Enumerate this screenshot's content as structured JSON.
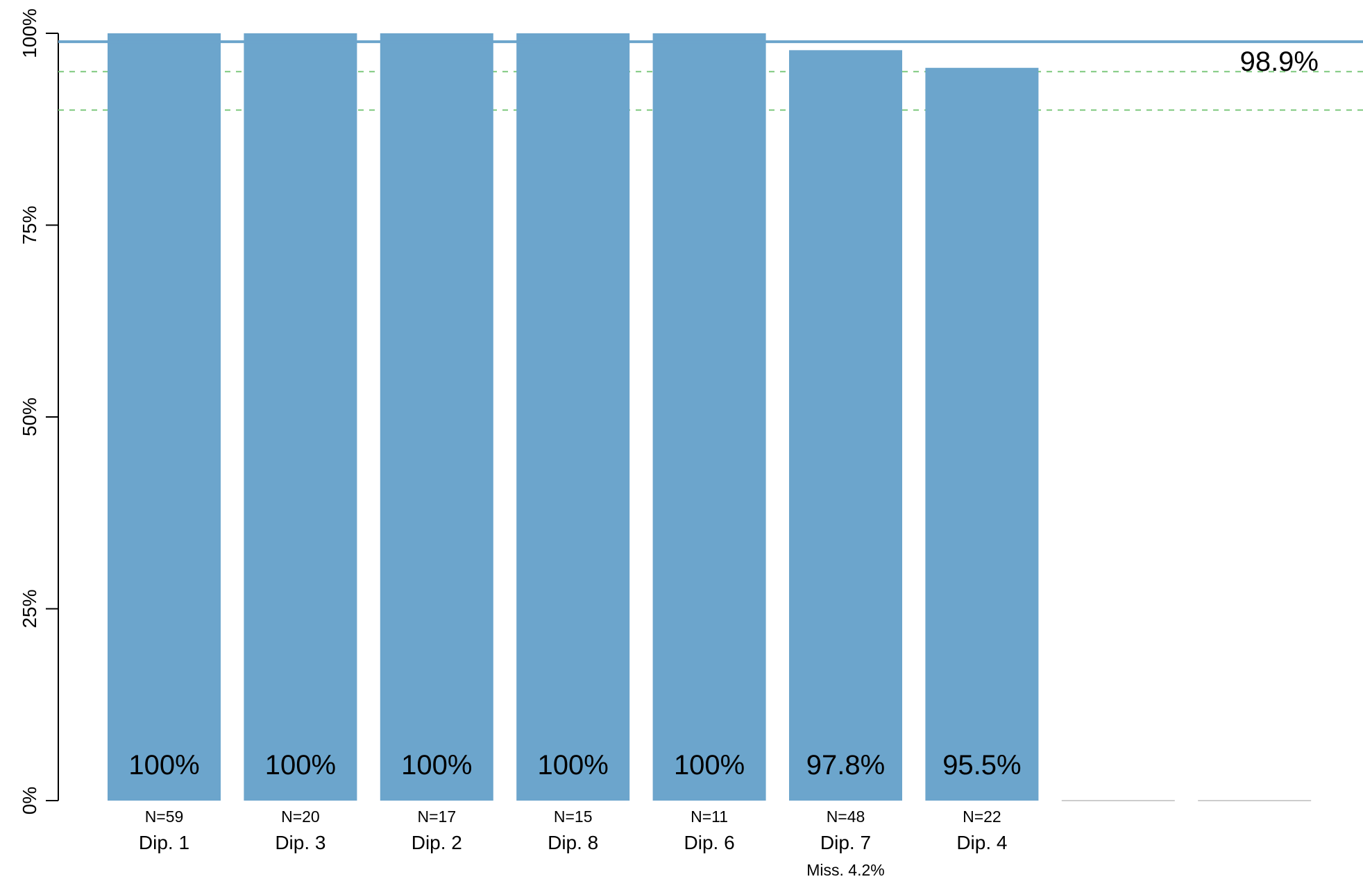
{
  "chart_data": {
    "type": "bar",
    "categories": [
      "Dip. 1",
      "Dip. 3",
      "Dip. 2",
      "Dip. 8",
      "Dip. 6",
      "Dip. 7",
      "Dip. 4",
      "",
      ""
    ],
    "values": [
      100,
      100,
      100,
      100,
      100,
      97.8,
      95.5,
      0,
      0
    ],
    "value_labels": [
      "100%",
      "100%",
      "100%",
      "100%",
      "100%",
      "97.8%",
      "95.5%",
      "",
      ""
    ],
    "n_labels": [
      "N=59",
      "N=20",
      "N=17",
      "N=15",
      "N=11",
      "N=48",
      "N=22",
      "",
      ""
    ],
    "missing_labels": [
      "",
      "",
      "",
      "",
      "",
      "Miss. 4.2%",
      "",
      "",
      ""
    ],
    "ylim": [
      0,
      100
    ],
    "yticks": [
      0,
      25,
      50,
      75,
      100
    ],
    "ytick_labels": [
      "0%",
      "25%",
      "50%",
      "75%",
      "100%"
    ],
    "reference_line": {
      "value": 98.9,
      "label": "98.9%",
      "color": "#6ca5cc"
    },
    "guide_lines": [
      95,
      90
    ],
    "guide_line_color": "#7dc87d",
    "bar_color": "#6ca5cc",
    "empty_bar_color": "#cccccc",
    "grid": false,
    "legend": "none"
  }
}
